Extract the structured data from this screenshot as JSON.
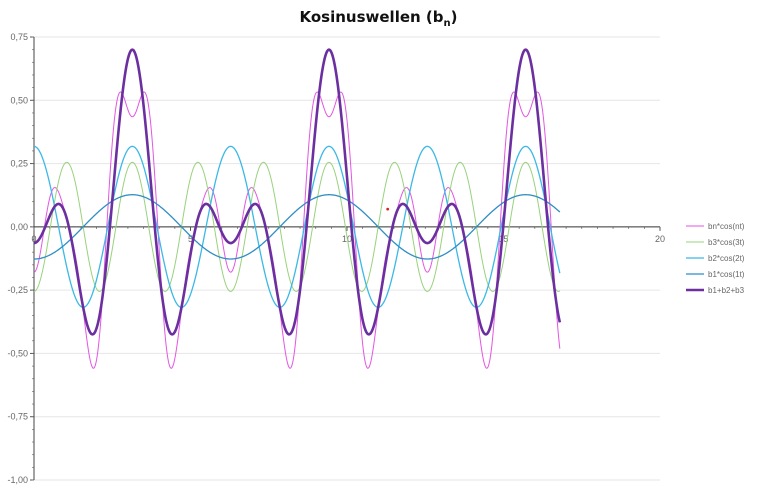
{
  "title_main": "Kosinuswellen (b",
  "title_sub": "n",
  "title_end": ")",
  "chart_data": {
    "type": "line",
    "title": "Kosinuswellen (bn)",
    "xlim": [
      0,
      20
    ],
    "ylim": [
      -1.0,
      0.75
    ],
    "x_ticks": [
      0,
      5,
      10,
      15,
      20
    ],
    "x_tick_labels": [
      "0",
      "5",
      "10",
      "15",
      "20"
    ],
    "y_ticks": [
      0.75,
      0.5,
      0.25,
      0.0,
      -0.25,
      -0.5,
      -0.75,
      -1.0
    ],
    "y_tick_labels": [
      "0,75",
      "0,50",
      "0,25",
      "0,00",
      "-0,25",
      "-0,50",
      "-0,75",
      "-1,00"
    ],
    "grid": "horizontal",
    "legend_position": "right",
    "x_range_plotted": [
      0,
      16.8
    ],
    "series": [
      {
        "name": "bn*cos(nt)",
        "color": "#e356e3",
        "width": 1,
        "components": [
          {
            "a": 0.127,
            "k": 1
          },
          {
            "a": 0.318,
            "k": 2
          },
          {
            "a": 0.255,
            "k": 3
          },
          {
            "a": -0.1,
            "k": 4
          },
          {
            "a": -0.075,
            "k": 5
          },
          {
            "a": -0.09,
            "k": 6
          }
        ]
      },
      {
        "name": "b3*cos(3t)",
        "color": "#98d27c",
        "width": 1,
        "components": [
          {
            "a": 0.255,
            "k": 3
          }
        ]
      },
      {
        "name": "b2*cos(2t)",
        "color": "#3cb8e6",
        "width": 1.3,
        "components": [
          {
            "a": 0.318,
            "k": 2
          }
        ]
      },
      {
        "name": "b1*cos(1t)",
        "color": "#2f8ec4",
        "width": 1.3,
        "components": [
          {
            "a": 0.127,
            "k": 1
          }
        ]
      },
      {
        "name": "b1+b2+b3",
        "color": "#6b2fa0",
        "width": 2.6,
        "components": [
          {
            "a": 0.127,
            "k": 1
          },
          {
            "a": 0.318,
            "k": 2
          },
          {
            "a": 0.255,
            "k": 3
          }
        ]
      }
    ],
    "t_shift": 3.14159,
    "annotations": [
      {
        "type": "point",
        "x": 11.3,
        "y": 0.07,
        "color": "#e02020"
      }
    ]
  }
}
